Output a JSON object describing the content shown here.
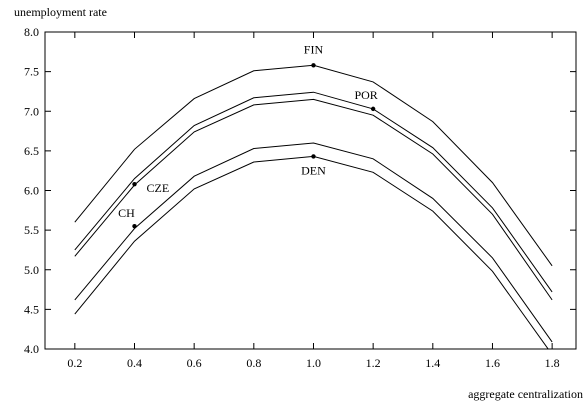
{
  "chart_data": {
    "type": "line",
    "ylabel": "unemployment rate",
    "xlabel": "aggregate centralization",
    "xlim": [
      0.1,
      1.88
    ],
    "ylim": [
      4.0,
      8.0
    ],
    "x_ticks": [
      "0.2",
      "0.4",
      "0.6",
      "0.8",
      "1.0",
      "1.2",
      "1.4",
      "1.6",
      "1.8"
    ],
    "y_ticks": [
      "4.0",
      "4.5",
      "5.0",
      "5.5",
      "6.0",
      "6.5",
      "7.0",
      "7.5",
      "8.0"
    ],
    "grid": false,
    "x": [
      0.2,
      0.4,
      0.6,
      0.8,
      1.0,
      1.2,
      1.4,
      1.6,
      1.8
    ],
    "series": [
      {
        "values": [
          5.6,
          6.52,
          7.16,
          7.51,
          7.58,
          7.37,
          6.87,
          6.1,
          5.05
        ]
      },
      {
        "values": [
          5.25,
          6.15,
          6.82,
          7.17,
          7.24,
          7.03,
          6.54,
          5.78,
          4.72
        ]
      },
      {
        "values": [
          5.17,
          6.07,
          6.74,
          7.08,
          7.15,
          6.95,
          6.46,
          5.7,
          4.62
        ]
      },
      {
        "values": [
          4.62,
          5.52,
          6.18,
          6.53,
          6.6,
          6.4,
          5.9,
          5.15,
          4.09
        ]
      },
      {
        "values": [
          4.44,
          5.36,
          6.02,
          6.36,
          6.43,
          6.23,
          5.74,
          4.98,
          3.93
        ]
      }
    ],
    "annotations": [
      {
        "label": "FIN",
        "x": 1.0,
        "y": 7.58
      },
      {
        "label": "POR",
        "x": 1.2,
        "y": 7.03
      },
      {
        "label": "CZE",
        "x": 0.4,
        "y": 6.08
      },
      {
        "label": "CH",
        "x": 0.4,
        "y": 5.55
      },
      {
        "label": "DEN",
        "x": 1.0,
        "y": 6.43
      }
    ]
  }
}
